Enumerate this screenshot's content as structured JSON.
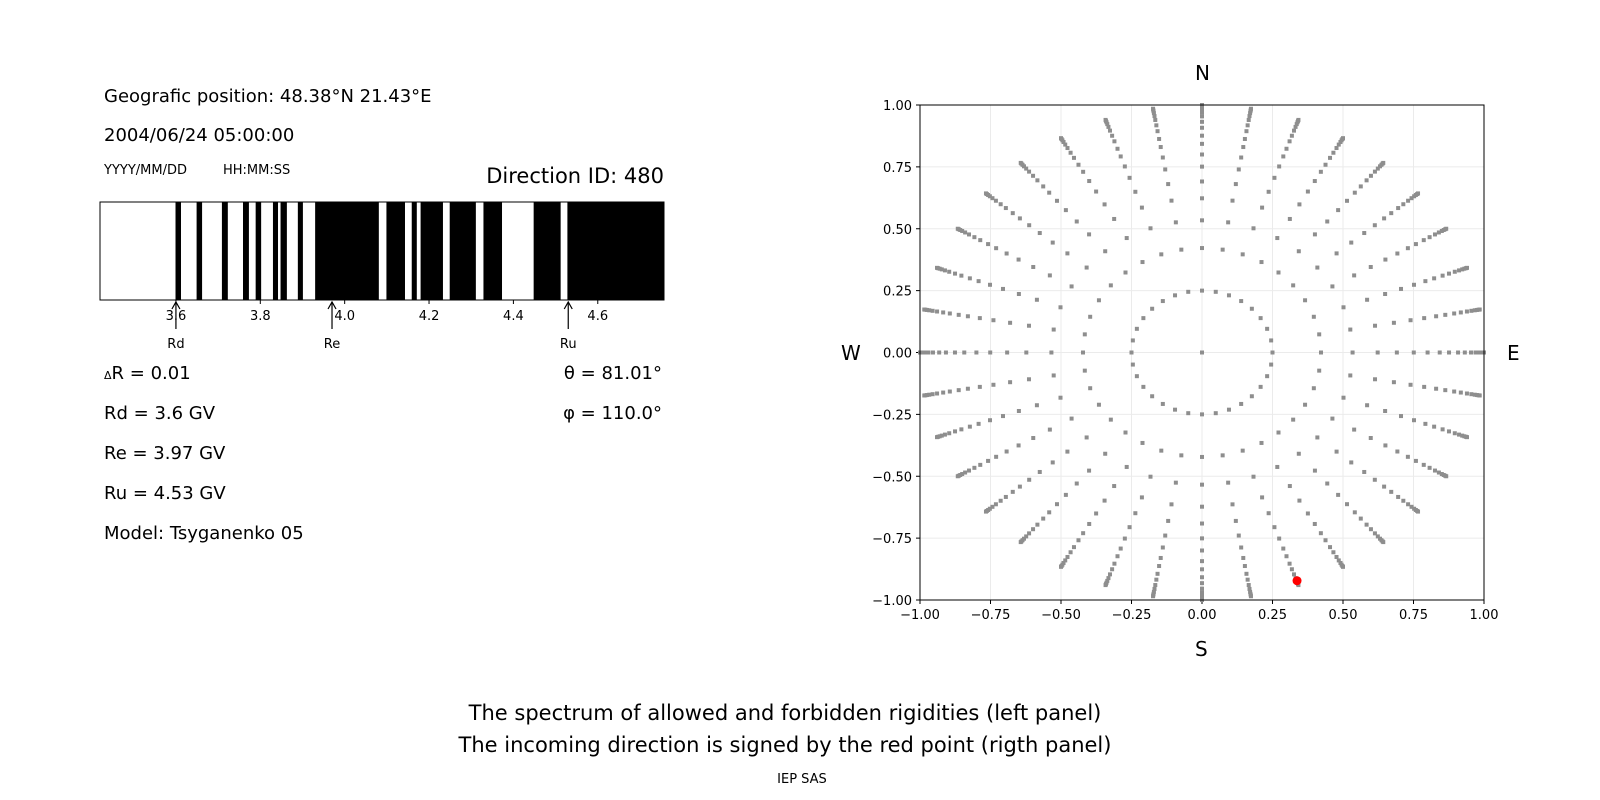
{
  "left_panel": {
    "position": "Geografic position: 48.38°N 21.43°E",
    "datetime": "2004/06/24 05:00:00",
    "date_format": "YYYY/MM/DD",
    "time_format": "HH:MM:SS",
    "direction_id": "Direction ID: 480",
    "delta_r_symbol": "Δ",
    "delta_r": "R = 0.01",
    "rd": "Rd = 3.6 GV",
    "re": "Re = 3.97 GV",
    "ru": "Ru = 4.53 GV",
    "model": "Model: Tsyganenko 05",
    "theta": "θ = 81.01°",
    "phi": "φ = 110.0°"
  },
  "right_panel": {
    "north": "N",
    "south": "S",
    "west": "W",
    "east": "E"
  },
  "captions": {
    "line1": "The spectrum of allowed and forbidden rigidities (left panel)",
    "line2": "The incoming direction is signed by the red point (rigth panel)",
    "footer": "IEP SAS"
  },
  "chart_data": [
    {
      "type": "bar",
      "description_units": "GV",
      "xlim": [
        3.42,
        4.757
      ],
      "ticks": [
        "3.6",
        "3.8",
        "4.0",
        "4.2",
        "4.4",
        "4.6"
      ],
      "tick_values": [
        3.6,
        3.8,
        4.0,
        4.2,
        4.4,
        4.6
      ],
      "forbidden_intervals": [
        [
          3.599,
          3.612
        ],
        [
          3.649,
          3.662
        ],
        [
          3.709,
          3.723
        ],
        [
          3.759,
          3.773
        ],
        [
          3.789,
          3.802
        ],
        [
          3.83,
          3.842
        ],
        [
          3.848,
          3.863
        ],
        [
          3.889,
          3.901
        ],
        [
          3.93,
          4.081
        ],
        [
          4.099,
          4.143
        ],
        [
          4.159,
          4.171
        ],
        [
          4.18,
          4.233
        ],
        [
          4.249,
          4.311
        ],
        [
          4.329,
          4.373
        ],
        [
          4.448,
          4.512
        ],
        [
          4.528,
          4.757
        ]
      ],
      "colors": {
        "forbidden": "#000000",
        "allowed": "#ffffff"
      },
      "markers": [
        {
          "label": "Rd",
          "value": 3.6
        },
        {
          "label": "Re",
          "value": 3.97
        },
        {
          "label": "Ru",
          "value": 4.53
        }
      ]
    },
    {
      "type": "scatter",
      "xlim": [
        -1.0,
        1.0
      ],
      "ylim": [
        -1.0,
        1.0
      ],
      "xticks": [
        "−1.00",
        "−0.75",
        "−0.50",
        "−0.25",
        "0.00",
        "0.25",
        "0.50",
        "0.75",
        "1.00"
      ],
      "yticks": [
        "−1.00",
        "−0.75",
        "−0.50",
        "−0.25",
        "0.00",
        "0.25",
        "0.50",
        "0.75",
        "1.00"
      ],
      "tick_values": [
        -1,
        -0.75,
        -0.5,
        -0.25,
        0,
        0.25,
        0.5,
        0.75,
        1
      ],
      "grid": true,
      "grid_points": {
        "center": [
          0,
          0
        ],
        "inner_ring_radius": 0.25,
        "inner_ring_count": 32,
        "spoke_azimuth_step_deg": 10,
        "spoke_radii": [
          0.422,
          0.534,
          0.623,
          0.691,
          0.751,
          0.8,
          0.843,
          0.876,
          0.908,
          0.932,
          0.954,
          0.97,
          0.982,
          0.99,
          0.996,
          1.0
        ],
        "color": "#8e8e8e"
      },
      "highlight_point": {
        "x": 0.337,
        "y": -0.922,
        "color": "#ff0000"
      }
    }
  ]
}
